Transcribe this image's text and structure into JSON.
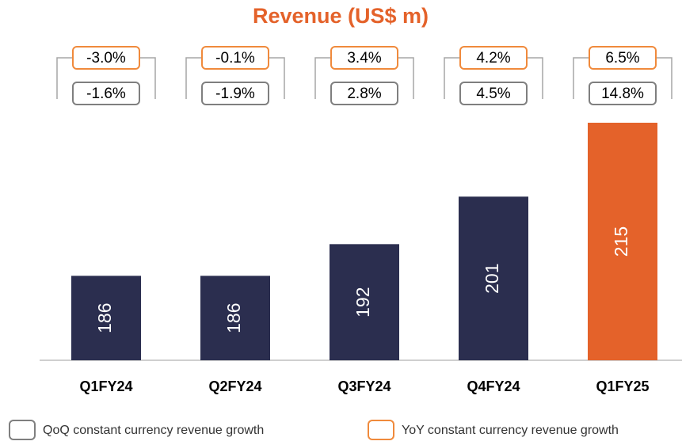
{
  "chart_data": {
    "type": "bar",
    "title": "Revenue (US$ m)",
    "categories": [
      "Q1FY24",
      "Q2FY24",
      "Q3FY24",
      "Q4FY24",
      "Q1FY25"
    ],
    "values": [
      186,
      186,
      192,
      201,
      215
    ],
    "colors": [
      "#2b2e4f",
      "#2b2e4f",
      "#2b2e4f",
      "#2b2e4f",
      "#e4622a"
    ],
    "ylim": [
      170,
      230
    ],
    "annotations": [
      {
        "name": "YoY constant currency revenue growth",
        "color": "#f08a3c",
        "values": [
          -3.0,
          -0.1,
          3.4,
          4.2,
          6.5
        ],
        "value_labels": [
          "-3.0%",
          "-0.1%",
          "3.4%",
          "4.2%",
          "6.5%"
        ]
      },
      {
        "name": "QoQ constant currency revenue growth",
        "color": "#7f7f7f",
        "values": [
          -1.6,
          -1.9,
          2.8,
          4.5,
          14.8
        ],
        "value_labels": [
          "-1.6%",
          "-1.9%",
          "2.8%",
          "4.5%",
          "14.8%"
        ]
      }
    ]
  }
}
